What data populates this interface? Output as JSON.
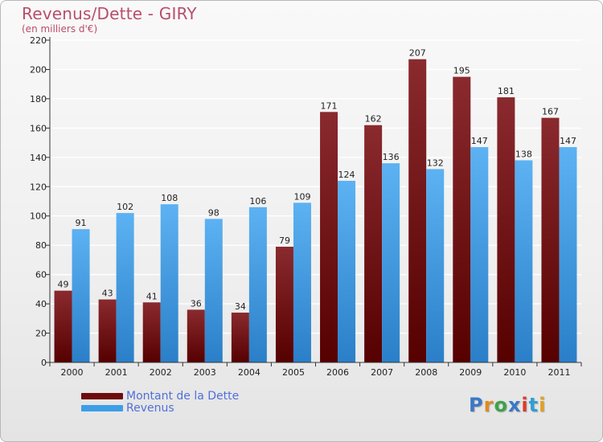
{
  "title": "Revenus/Dette - GIRY",
  "subtitle": "(en milliers d'€)",
  "logo": {
    "text": "Proxiti",
    "letter_colors": [
      "#3a78c8",
      "#e08a1e",
      "#3fa24a",
      "#3a78c8",
      "#e03a2a",
      "#2f9fd6",
      "#e0a21e"
    ]
  },
  "colors": {
    "dette": "#6e0c0c",
    "revenus": "#3d9ee8",
    "axis_text": "#222222",
    "grid": "#ffffff"
  },
  "legend": [
    {
      "label": "Montant de la Dette",
      "color": "#6e0c0c"
    },
    {
      "label": "Revenus",
      "color": "#3d9ee8"
    }
  ],
  "chart_data": {
    "type": "bar",
    "categories": [
      "2000",
      "2001",
      "2002",
      "2003",
      "2004",
      "2005",
      "2006",
      "2007",
      "2008",
      "2009",
      "2010",
      "2011"
    ],
    "series": [
      {
        "name": "Montant de la Dette",
        "values": [
          49,
          43,
          41,
          36,
          34,
          79,
          171,
          162,
          207,
          195,
          181,
          167
        ]
      },
      {
        "name": "Revenus",
        "values": [
          91,
          102,
          108,
          98,
          106,
          109,
          124,
          136,
          132,
          147,
          138,
          147
        ]
      }
    ],
    "title": "Revenus/Dette - GIRY",
    "ylabel": "(en milliers d'€)",
    "ylim": [
      0,
      220
    ],
    "yticks": [
      0,
      20,
      40,
      60,
      80,
      100,
      120,
      140,
      160,
      180,
      200,
      220
    ],
    "grid": true,
    "legend_position": "bottom-left"
  }
}
